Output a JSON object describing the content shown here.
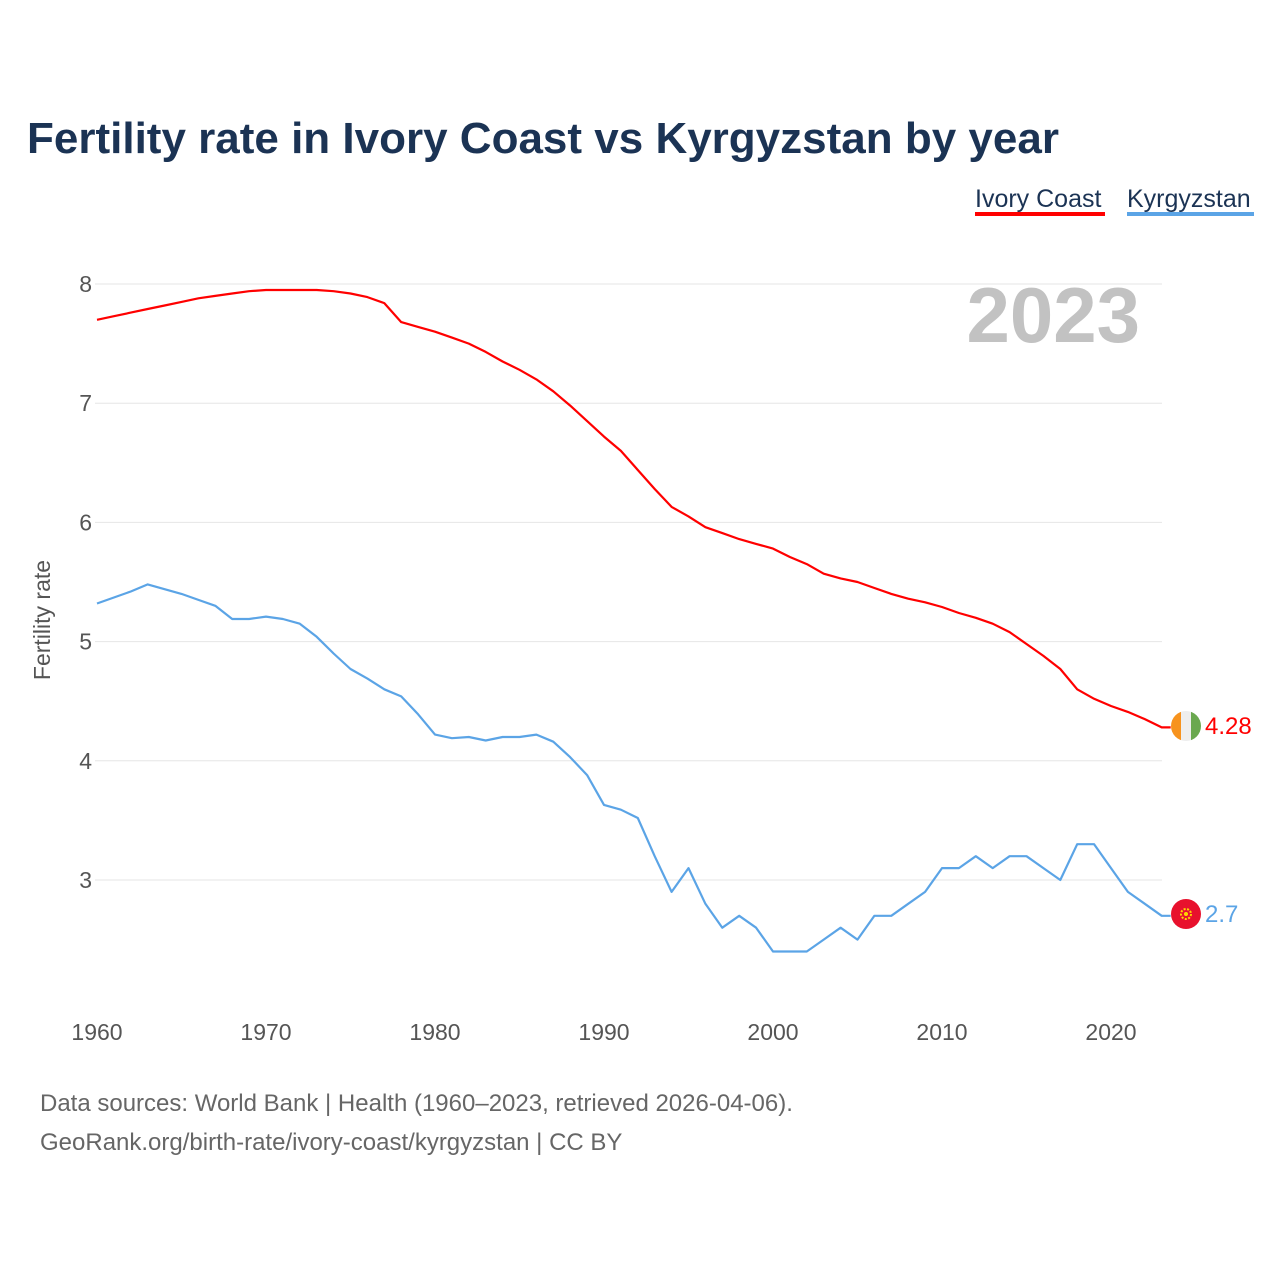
{
  "chart_data": {
    "type": "line",
    "title": "Fertility rate in Ivory Coast vs Kyrgyzstan by year",
    "xlabel": "",
    "ylabel": "Fertility rate",
    "xlim": [
      1960,
      2023
    ],
    "ylim": [
      2.1,
      8.2
    ],
    "x_ticks": [
      1960,
      1970,
      1980,
      1990,
      2000,
      2010,
      2020
    ],
    "y_ticks": [
      3,
      4,
      5,
      6,
      7,
      8
    ],
    "grid": true,
    "legend_position": "top-right",
    "current_year": "2023",
    "x": [
      1960,
      1961,
      1962,
      1963,
      1964,
      1965,
      1966,
      1967,
      1968,
      1969,
      1970,
      1971,
      1972,
      1973,
      1974,
      1975,
      1976,
      1977,
      1978,
      1979,
      1980,
      1981,
      1982,
      1983,
      1984,
      1985,
      1986,
      1987,
      1988,
      1989,
      1990,
      1991,
      1992,
      1993,
      1994,
      1995,
      1996,
      1997,
      1998,
      1999,
      2000,
      2001,
      2002,
      2003,
      2004,
      2005,
      2006,
      2007,
      2008,
      2009,
      2010,
      2011,
      2012,
      2013,
      2014,
      2015,
      2016,
      2017,
      2018,
      2019,
      2020,
      2021,
      2022,
      2023
    ],
    "series": [
      {
        "name": "Ivory Coast",
        "color": "#ff0000",
        "end_label": "4.28",
        "values": [
          7.7,
          7.73,
          7.76,
          7.79,
          7.82,
          7.85,
          7.88,
          7.9,
          7.92,
          7.94,
          7.95,
          7.95,
          7.95,
          7.95,
          7.94,
          7.92,
          7.89,
          7.84,
          7.68,
          7.64,
          7.6,
          7.55,
          7.5,
          7.43,
          7.35,
          7.28,
          7.2,
          7.1,
          6.98,
          6.85,
          6.72,
          6.6,
          6.44,
          6.28,
          6.13,
          6.05,
          5.96,
          5.91,
          5.86,
          5.82,
          5.78,
          5.71,
          5.65,
          5.57,
          5.53,
          5.5,
          5.45,
          5.4,
          5.36,
          5.33,
          5.29,
          5.24,
          5.2,
          5.15,
          5.08,
          4.98,
          4.88,
          4.77,
          4.6,
          4.52,
          4.46,
          4.41,
          4.35,
          4.28
        ]
      },
      {
        "name": "Kyrgyzstan",
        "color": "#5ba4e6",
        "end_label": "2.7",
        "values": [
          5.32,
          5.37,
          5.42,
          5.48,
          5.44,
          5.4,
          5.35,
          5.3,
          5.19,
          5.19,
          5.21,
          5.19,
          5.15,
          5.04,
          4.9,
          4.77,
          4.69,
          4.6,
          4.54,
          4.39,
          4.22,
          4.19,
          4.2,
          4.17,
          4.2,
          4.2,
          4.22,
          4.16,
          4.03,
          3.88,
          3.63,
          3.59,
          3.52,
          3.2,
          2.9,
          3.1,
          2.8,
          2.6,
          2.7,
          2.6,
          2.4,
          2.4,
          2.4,
          2.5,
          2.6,
          2.5,
          2.7,
          2.7,
          2.8,
          2.9,
          3.1,
          3.1,
          3.2,
          3.1,
          3.2,
          3.2,
          3.1,
          3.0,
          3.3,
          3.3,
          3.1,
          2.9,
          2.8,
          2.7
        ]
      }
    ]
  },
  "footer": {
    "sources": "Data sources: World Bank | Health (1960–2023, retrieved 2026-04-06).",
    "credit": "GeoRank.org/birth-rate/ivory-coast/kyrgyzstan | CC BY"
  }
}
